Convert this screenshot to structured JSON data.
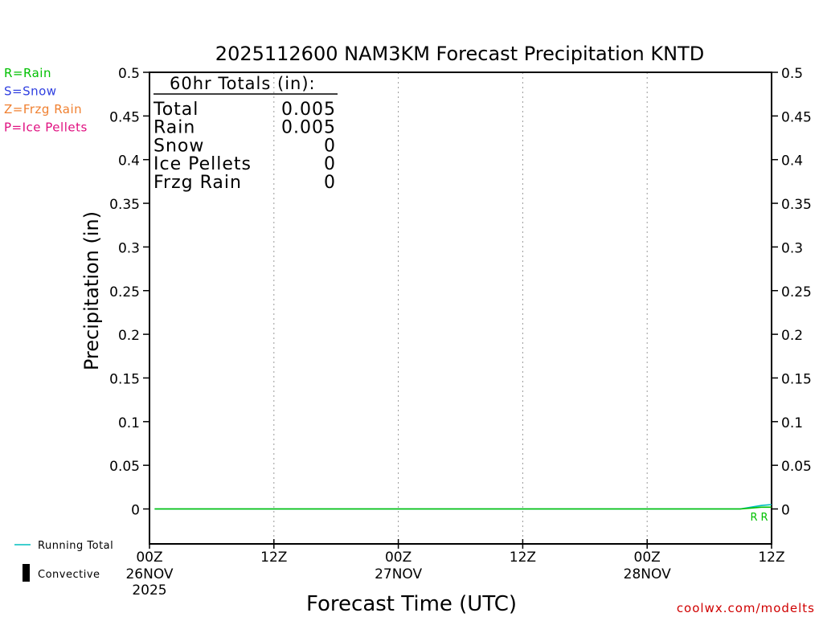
{
  "chart_data": {
    "type": "line",
    "title": "2025112600 NAM3KM Forecast Precipitation KNTD",
    "xlabel": "Forecast Time (UTC)",
    "ylabel": "Precipitation (in)",
    "ylim": [
      -0.04,
      0.5
    ],
    "xlim": [
      0,
      60
    ],
    "yticks": [
      "0.5",
      "0.45",
      "0.4",
      "0.35",
      "0.3",
      "0.25",
      "0.2",
      "0.15",
      "0.1",
      "0.05",
      "0"
    ],
    "ytick_values": [
      0.5,
      0.45,
      0.4,
      0.35,
      0.3,
      0.25,
      0.2,
      0.15,
      0.1,
      0.05,
      0
    ],
    "xticks": [
      {
        "hour": 0,
        "label": "00Z",
        "date": "26NOV",
        "year": "2025"
      },
      {
        "hour": 12,
        "label": "12Z",
        "date": "",
        "year": ""
      },
      {
        "hour": 24,
        "label": "00Z",
        "date": "27NOV",
        "year": ""
      },
      {
        "hour": 36,
        "label": "12Z",
        "date": "",
        "year": ""
      },
      {
        "hour": 48,
        "label": "00Z",
        "date": "28NOV",
        "year": ""
      },
      {
        "hour": 60,
        "label": "12Z",
        "date": "",
        "year": ""
      }
    ],
    "grid_hours": [
      12,
      24,
      36,
      48
    ],
    "series": [
      {
        "name": "Running Total",
        "color": "#00bfbf",
        "x": [
          0.5,
          57,
          58,
          59,
          60
        ],
        "y": [
          0,
          0,
          0.002,
          0.004,
          0.005
        ]
      },
      {
        "name": "Rain",
        "color": "#00c000",
        "x": [
          0.5,
          57,
          58,
          59,
          60
        ],
        "y": [
          0,
          0,
          0.001,
          0.002,
          0.002
        ]
      }
    ],
    "type_markers": [
      {
        "hour": 58.3,
        "symbol": "R",
        "color": "#00c000"
      },
      {
        "hour": 59.3,
        "symbol": "R",
        "color": "#00c000"
      }
    ],
    "legend_types": [
      {
        "text": "R=Rain",
        "color": "#00c000"
      },
      {
        "text": "S=Snow",
        "color": "#3040e0"
      },
      {
        "text": "Z=Frzg Rain",
        "color": "#f08030"
      },
      {
        "text": "P=Ice Pellets",
        "color": "#e01080"
      }
    ],
    "legend_lines": [
      {
        "text": "Running Total",
        "color": "#00bfbf",
        "kind": "line"
      },
      {
        "text": "Convective",
        "color": "#000000",
        "kind": "bar"
      }
    ],
    "totals": {
      "header": "60hr Totals (in):",
      "rows": [
        {
          "label": "Total",
          "value": "0.005"
        },
        {
          "label": "Rain",
          "value": "0.005"
        },
        {
          "label": "Snow",
          "value": "0"
        },
        {
          "label": "Ice Pellets",
          "value": "0"
        },
        {
          "label": "Frzg Rain",
          "value": "0"
        }
      ]
    },
    "credit": "coolwx.com/modelts",
    "credit_color": "#d00000"
  }
}
